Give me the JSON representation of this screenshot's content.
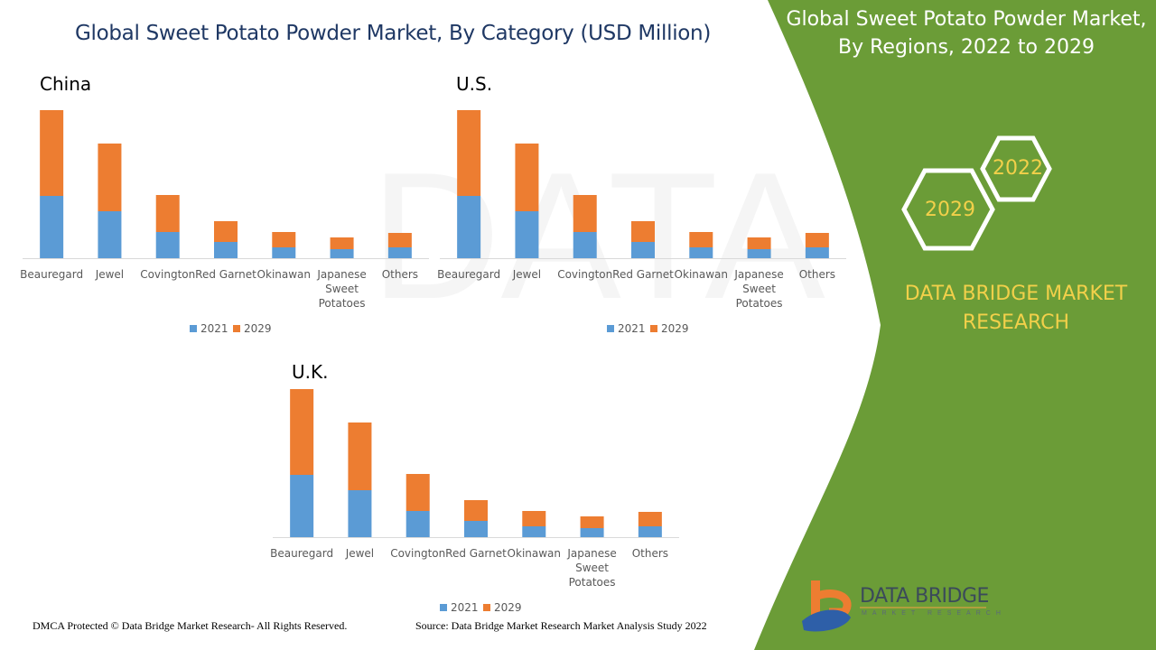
{
  "title": "Global Sweet Potato Powder Market, By Category (USD Million)",
  "side_panel": {
    "title_line1": "Global Sweet Potato Powder Market,",
    "title_line2": "By Regions, 2022 to 2029",
    "hex_year_1": "2022",
    "hex_year_2": "2029",
    "brand_line1": "DATA BRIDGE MARKET",
    "brand_line2": "RESEARCH",
    "logo_text": "DATA BRIDGE",
    "logo_subtext": "MARKET RESEARCH",
    "panel_color": "#6b9c37",
    "accent_color": "#f2d04a"
  },
  "footer": {
    "copyright": "DMCA Protected © Data Bridge Market Research- All Rights Reserved.",
    "source": "Source: Data Bridge Market Research Market Analysis Study 2022"
  },
  "chart_data": [
    {
      "type": "bar",
      "stacked": true,
      "title": "China",
      "categories": [
        "Beauregard",
        "Jewel",
        "Covington",
        "Red Garnet",
        "Okinawan",
        "Japanese Sweet Potatoes",
        "Others"
      ],
      "series": [
        {
          "name": "2021",
          "color": "#5b9bd5",
          "values": [
            69,
            52,
            29,
            18,
            12,
            10,
            12
          ]
        },
        {
          "name": "2029",
          "color": "#ed7d31",
          "values": [
            95,
            75,
            41,
            23,
            17,
            13,
            16
          ]
        }
      ],
      "legend": "bottom",
      "grid": false,
      "y_axis_shown": false
    },
    {
      "type": "bar",
      "stacked": true,
      "title": "U.S.",
      "categories": [
        "Beauregard",
        "Jewel",
        "Covington",
        "Red Garnet",
        "Okinawan",
        "Japanese Sweet Potatoes",
        "Others"
      ],
      "series": [
        {
          "name": "2021",
          "color": "#5b9bd5",
          "values": [
            69,
            52,
            29,
            18,
            12,
            10,
            12
          ]
        },
        {
          "name": "2029",
          "color": "#ed7d31",
          "values": [
            95,
            75,
            41,
            23,
            17,
            13,
            16
          ]
        }
      ],
      "legend": "bottom",
      "grid": false,
      "y_axis_shown": false
    },
    {
      "type": "bar",
      "stacked": true,
      "title": "U.K.",
      "categories": [
        "Beauregard",
        "Jewel",
        "Covington",
        "Red Garnet",
        "Okinawan",
        "Japanese Sweet Potatoes",
        "Others"
      ],
      "series": [
        {
          "name": "2021",
          "color": "#5b9bd5",
          "values": [
            69,
            52,
            29,
            18,
            12,
            10,
            12
          ]
        },
        {
          "name": "2029",
          "color": "#ed7d31",
          "values": [
            95,
            75,
            41,
            23,
            17,
            13,
            16
          ]
        }
      ],
      "legend": "bottom",
      "grid": false,
      "y_axis_shown": false
    }
  ]
}
